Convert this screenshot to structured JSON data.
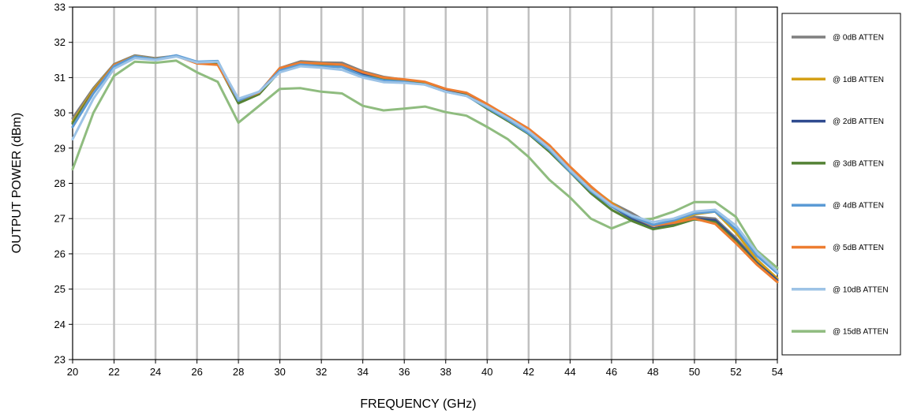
{
  "chart_data": {
    "type": "line",
    "title": "",
    "xlabel": "FREQUENCY (GHz)",
    "ylabel": "OUTPUT POWER (dBm)",
    "xlim": [
      20,
      54
    ],
    "ylim": [
      23,
      33
    ],
    "x_ticks": [
      "20",
      "22",
      "24",
      "26",
      "28",
      "30",
      "32",
      "34",
      "36",
      "38",
      "40",
      "42",
      "44",
      "46",
      "48",
      "50",
      "52",
      "54"
    ],
    "y_ticks": [
      "23",
      "24",
      "25",
      "26",
      "27",
      "28",
      "29",
      "30",
      "31",
      "32",
      "33"
    ],
    "grid": "vertical",
    "legend_position": "right",
    "x": [
      20,
      21,
      22,
      23,
      24,
      25,
      26,
      27,
      28,
      29,
      30,
      31,
      32,
      33,
      34,
      35,
      36,
      37,
      38,
      39,
      40,
      41,
      42,
      43,
      44,
      45,
      46,
      47,
      48,
      49,
      50,
      51,
      52,
      53,
      54
    ],
    "series": [
      {
        "name": "@ 0dB ATTEN",
        "color": "#7f7f7f",
        "values": [
          29.85,
          30.7,
          31.38,
          31.63,
          31.55,
          31.62,
          31.44,
          31.4,
          30.3,
          30.58,
          31.27,
          31.46,
          31.43,
          31.42,
          31.18,
          31.02,
          30.94,
          30.87,
          30.67,
          30.56,
          30.23,
          29.88,
          29.52,
          29.02,
          28.4,
          27.85,
          27.45,
          27.15,
          26.8,
          26.85,
          27.05,
          27.0,
          26.45,
          25.8,
          25.3
        ]
      },
      {
        "name": "@ 1dB ATTEN",
        "color": "#d4a017",
        "values": [
          29.75,
          30.65,
          31.36,
          31.61,
          31.53,
          31.62,
          31.43,
          31.4,
          30.32,
          30.57,
          31.25,
          31.42,
          31.4,
          31.36,
          31.12,
          31.0,
          30.94,
          30.86,
          30.66,
          30.55,
          30.22,
          29.86,
          29.5,
          29.03,
          28.44,
          27.9,
          27.45,
          27.05,
          26.8,
          26.9,
          27.12,
          27.2,
          26.6,
          25.85,
          25.3
        ]
      },
      {
        "name": "@ 2dB ATTEN",
        "color": "#2f4b8f",
        "values": [
          29.7,
          30.6,
          31.35,
          31.6,
          31.52,
          31.61,
          31.42,
          31.4,
          30.3,
          30.55,
          31.2,
          31.4,
          31.37,
          31.33,
          31.1,
          30.98,
          30.92,
          30.84,
          30.63,
          30.52,
          30.15,
          29.8,
          29.43,
          28.95,
          28.36,
          27.82,
          27.35,
          27.0,
          26.72,
          26.82,
          27.0,
          26.95,
          26.4,
          25.75,
          25.25
        ]
      },
      {
        "name": "@ 3dB ATTEN",
        "color": "#548235",
        "values": [
          29.7,
          30.6,
          31.34,
          31.6,
          31.52,
          31.61,
          31.42,
          31.38,
          30.27,
          30.53,
          31.18,
          31.38,
          31.34,
          31.3,
          31.05,
          30.95,
          30.9,
          30.82,
          30.6,
          30.5,
          30.12,
          29.77,
          29.4,
          28.9,
          28.32,
          27.72,
          27.25,
          26.93,
          26.7,
          26.8,
          26.98,
          26.9,
          26.35,
          25.72,
          25.2
        ]
      },
      {
        "name": "@ 4dB ATTEN",
        "color": "#5b9bd5",
        "values": [
          29.6,
          30.55,
          31.32,
          31.6,
          31.52,
          31.63,
          31.45,
          31.47,
          30.35,
          30.6,
          31.2,
          31.37,
          31.32,
          31.3,
          31.05,
          30.92,
          30.88,
          30.8,
          30.6,
          30.48,
          30.15,
          29.8,
          29.42,
          28.95,
          28.33,
          27.78,
          27.35,
          27.05,
          26.82,
          26.95,
          27.15,
          27.2,
          26.7,
          25.95,
          25.45
        ]
      },
      {
        "name": "@ 5dB ATTEN",
        "color": "#ed7d31",
        "values": [
          29.6,
          30.58,
          31.35,
          31.6,
          31.52,
          31.61,
          31.4,
          31.36,
          30.35,
          30.58,
          31.27,
          31.42,
          31.4,
          31.37,
          31.15,
          31.0,
          30.95,
          30.88,
          30.68,
          30.57,
          30.25,
          29.9,
          29.55,
          29.08,
          28.47,
          27.92,
          27.42,
          27.05,
          26.8,
          26.88,
          27.0,
          26.85,
          26.3,
          25.7,
          25.2
        ]
      },
      {
        "name": "@ 10dB ATTEN",
        "color": "#9dc3e6",
        "values": [
          29.25,
          30.4,
          31.25,
          31.55,
          31.5,
          31.6,
          31.43,
          31.45,
          30.4,
          30.6,
          31.15,
          31.32,
          31.28,
          31.22,
          31.0,
          30.87,
          30.85,
          30.8,
          30.6,
          30.48,
          30.18,
          29.85,
          29.48,
          29.0,
          28.38,
          27.82,
          27.38,
          27.08,
          26.9,
          27.0,
          27.2,
          27.25,
          26.8,
          26.05,
          25.5
        ]
      },
      {
        "name": "@ 15dB ATTEN",
        "color": "#8fbc7f",
        "values": [
          28.4,
          30.0,
          31.05,
          31.45,
          31.42,
          31.48,
          31.15,
          30.88,
          29.72,
          30.2,
          30.68,
          30.7,
          30.6,
          30.55,
          30.2,
          30.07,
          30.12,
          30.18,
          30.02,
          29.92,
          29.6,
          29.25,
          28.75,
          28.1,
          27.6,
          27.0,
          26.72,
          26.95,
          27.0,
          27.2,
          27.47,
          27.47,
          27.05,
          26.1,
          25.6
        ]
      }
    ]
  }
}
